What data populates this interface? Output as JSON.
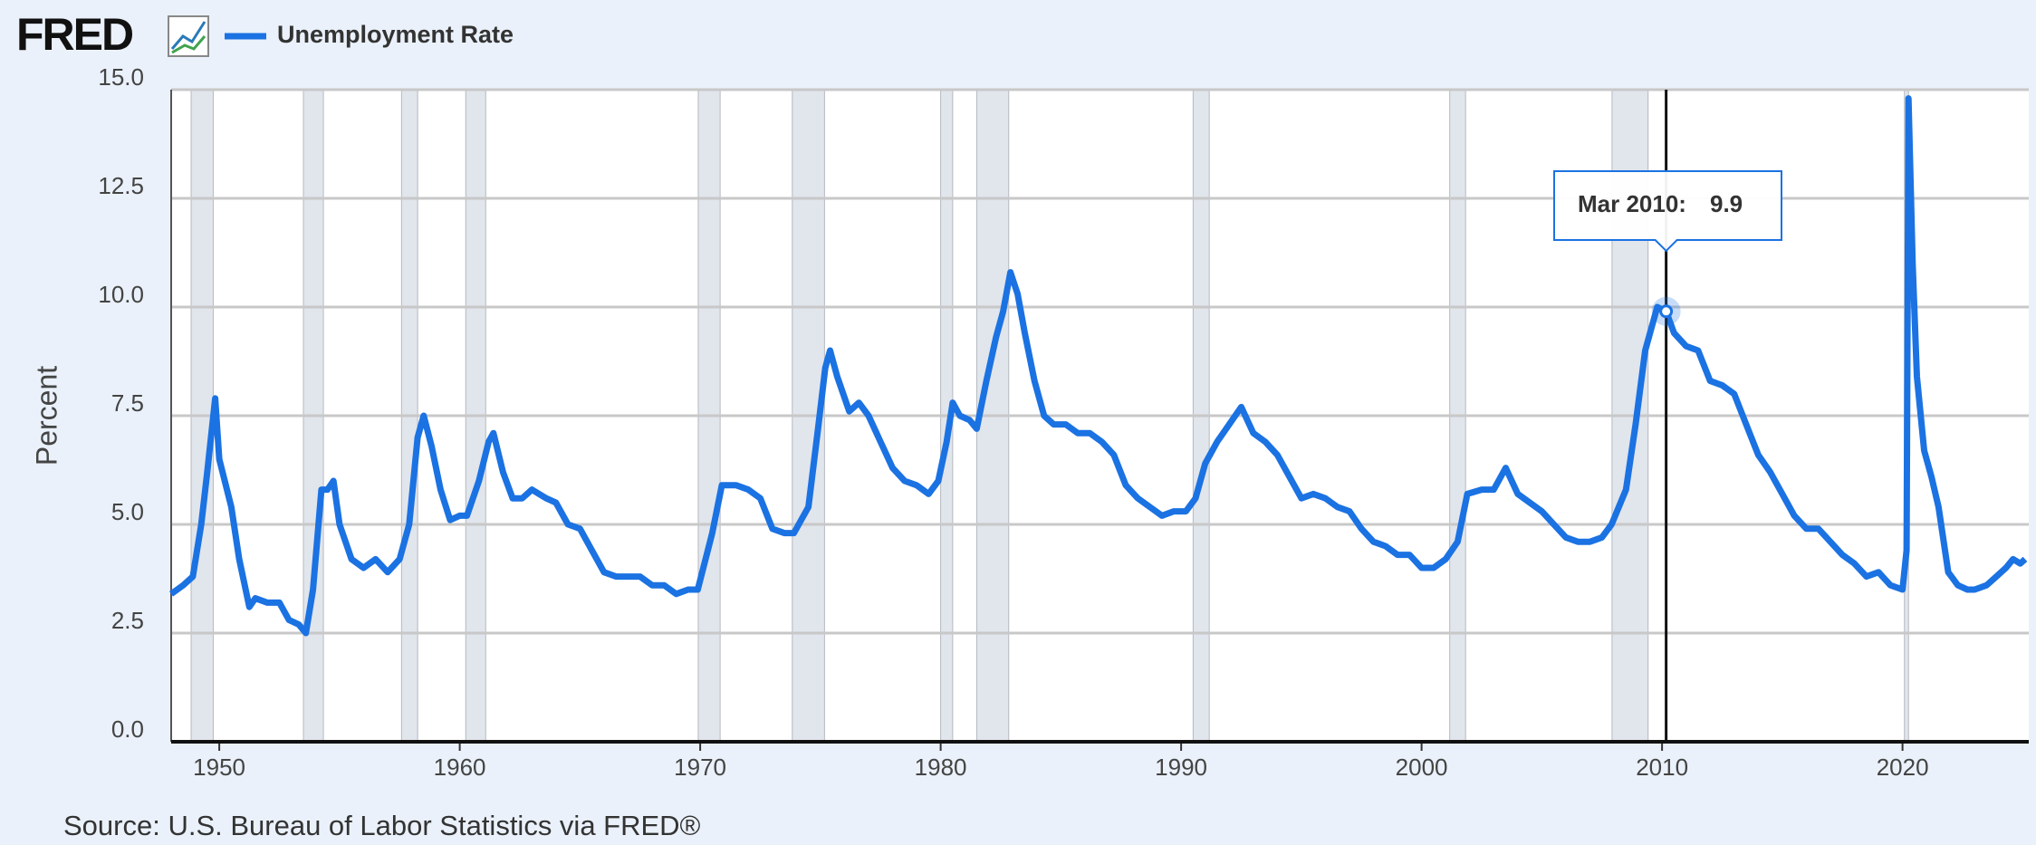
{
  "logo": "FRED",
  "source": "Source: U.S. Bureau of Labor Statistics via FRED®",
  "chart_data": {
    "type": "line",
    "y_label": "Percent",
    "xlim": [
      1948,
      2025.25
    ],
    "xticks": [
      1950,
      1960,
      1970,
      1980,
      1990,
      2000,
      2010,
      2020
    ],
    "ylim": [
      0,
      15
    ],
    "yticks": [
      {
        "value": 0,
        "label": "0.0"
      },
      {
        "value": 2.5,
        "label": "2.5"
      },
      {
        "value": 5,
        "label": "5.0"
      },
      {
        "value": 7.5,
        "label": "7.5"
      },
      {
        "value": 10,
        "label": "10.0"
      },
      {
        "value": 12.5,
        "label": "12.5"
      },
      {
        "value": 15,
        "label": "15.0"
      }
    ],
    "grid": true,
    "recession_color": "#e1e5ec",
    "recessions": [
      [
        1948.83,
        1949.75
      ],
      [
        1953.5,
        1954.33
      ],
      [
        1957.58,
        1958.25
      ],
      [
        1960.25,
        1961.08
      ],
      [
        1969.92,
        1970.83
      ],
      [
        1973.83,
        1975.17
      ],
      [
        1980.0,
        1980.5
      ],
      [
        1981.5,
        1982.83
      ],
      [
        1990.5,
        1991.17
      ],
      [
        2001.17,
        2001.83
      ],
      [
        2007.92,
        2009.42
      ],
      [
        2020.08,
        2020.25
      ]
    ],
    "x": [
      1948.0,
      1948.5,
      1948.9,
      1949.25,
      1949.5,
      1949.83,
      1950.0,
      1950.5,
      1950.83,
      1951.25,
      1951.5,
      1952.0,
      1952.5,
      1952.9,
      1953.3,
      1953.6,
      1953.9,
      1954.25,
      1954.5,
      1954.75,
      1955.0,
      1955.5,
      1956.0,
      1956.5,
      1957.0,
      1957.5,
      1957.9,
      1958.25,
      1958.5,
      1958.83,
      1959.2,
      1959.6,
      1960.0,
      1960.3,
      1960.8,
      1961.2,
      1961.4,
      1961.8,
      1962.2,
      1962.6,
      1963.0,
      1963.6,
      1964.0,
      1964.5,
      1965.0,
      1965.5,
      1966.0,
      1966.5,
      1967.0,
      1967.5,
      1968.0,
      1968.5,
      1969.0,
      1969.5,
      1969.9,
      1970.5,
      1970.9,
      1971.5,
      1972.0,
      1972.5,
      1973.0,
      1973.5,
      1973.9,
      1974.5,
      1974.9,
      1975.2,
      1975.4,
      1975.7,
      1976.2,
      1976.6,
      1977.0,
      1977.5,
      1978.0,
      1978.5,
      1979.0,
      1979.5,
      1979.9,
      1980.25,
      1980.5,
      1980.8,
      1981.2,
      1981.5,
      1981.9,
      1982.3,
      1982.6,
      1982.9,
      1983.2,
      1983.5,
      1983.9,
      1984.3,
      1984.7,
      1985.2,
      1985.7,
      1986.2,
      1986.7,
      1987.2,
      1987.7,
      1988.2,
      1988.7,
      1989.2,
      1989.7,
      1990.2,
      1990.6,
      1991.0,
      1991.5,
      1992.0,
      1992.5,
      1993.0,
      1993.5,
      1994.0,
      1994.5,
      1995.0,
      1995.5,
      1996.0,
      1996.5,
      1997.0,
      1997.5,
      1998.0,
      1998.5,
      1999.0,
      1999.5,
      2000.0,
      2000.5,
      2001.0,
      2001.5,
      2001.9,
      2002.5,
      2003.0,
      2003.5,
      2004.0,
      2004.5,
      2005.0,
      2005.5,
      2006.0,
      2006.5,
      2007.0,
      2007.5,
      2007.9,
      2008.5,
      2008.9,
      2009.3,
      2009.8,
      2010.17,
      2010.5,
      2011.0,
      2011.5,
      2012.0,
      2012.5,
      2013.0,
      2013.5,
      2014.0,
      2014.5,
      2015.0,
      2015.5,
      2016.0,
      2016.5,
      2017.0,
      2017.5,
      2018.0,
      2018.5,
      2019.0,
      2019.5,
      2020.0,
      2020.17,
      2020.25,
      2020.42,
      2020.6,
      2020.9,
      2021.2,
      2021.5,
      2021.9,
      2022.3,
      2022.7,
      2023.0,
      2023.5,
      2023.9,
      2024.3,
      2024.6,
      2024.9,
      2025.1
    ],
    "series": [
      {
        "name": "Unemployment Rate",
        "color": "#1b72e2",
        "values": [
          3.4,
          3.6,
          3.8,
          5.0,
          6.2,
          7.9,
          6.5,
          5.4,
          4.2,
          3.1,
          3.3,
          3.2,
          3.2,
          2.8,
          2.7,
          2.5,
          3.5,
          5.8,
          5.8,
          6.0,
          5.0,
          4.2,
          4.0,
          4.2,
          3.9,
          4.2,
          5.0,
          7.0,
          7.5,
          6.8,
          5.8,
          5.1,
          5.2,
          5.2,
          6.0,
          6.9,
          7.1,
          6.2,
          5.6,
          5.6,
          5.8,
          5.6,
          5.5,
          5.0,
          4.9,
          4.4,
          3.9,
          3.8,
          3.8,
          3.8,
          3.6,
          3.6,
          3.4,
          3.5,
          3.5,
          4.8,
          5.9,
          5.9,
          5.8,
          5.6,
          4.9,
          4.8,
          4.8,
          5.4,
          7.2,
          8.6,
          9.0,
          8.4,
          7.6,
          7.8,
          7.5,
          6.9,
          6.3,
          6.0,
          5.9,
          5.7,
          6.0,
          6.9,
          7.8,
          7.5,
          7.4,
          7.2,
          8.3,
          9.3,
          9.9,
          10.8,
          10.3,
          9.4,
          8.3,
          7.5,
          7.3,
          7.3,
          7.1,
          7.1,
          6.9,
          6.6,
          5.9,
          5.6,
          5.4,
          5.2,
          5.3,
          5.3,
          5.6,
          6.4,
          6.9,
          7.3,
          7.7,
          7.1,
          6.9,
          6.6,
          6.1,
          5.6,
          5.7,
          5.6,
          5.4,
          5.3,
          4.9,
          4.6,
          4.5,
          4.3,
          4.3,
          4.0,
          4.0,
          4.2,
          4.6,
          5.7,
          5.8,
          5.8,
          6.3,
          5.7,
          5.5,
          5.3,
          5.0,
          4.7,
          4.6,
          4.6,
          4.7,
          5.0,
          5.8,
          7.3,
          9.0,
          10.0,
          9.9,
          9.4,
          9.1,
          9.0,
          8.3,
          8.2,
          8.0,
          7.3,
          6.6,
          6.2,
          5.7,
          5.2,
          4.9,
          4.9,
          4.6,
          4.3,
          4.1,
          3.8,
          3.9,
          3.6,
          3.5,
          4.4,
          14.8,
          11.0,
          8.4,
          6.7,
          6.1,
          5.4,
          3.9,
          3.6,
          3.5,
          3.5,
          3.6,
          3.8,
          4.0,
          4.2,
          4.1,
          4.2
        ]
      }
    ],
    "tooltip": {
      "label": "Mar 2010:",
      "x": 2010.17,
      "value": 9.9
    }
  }
}
